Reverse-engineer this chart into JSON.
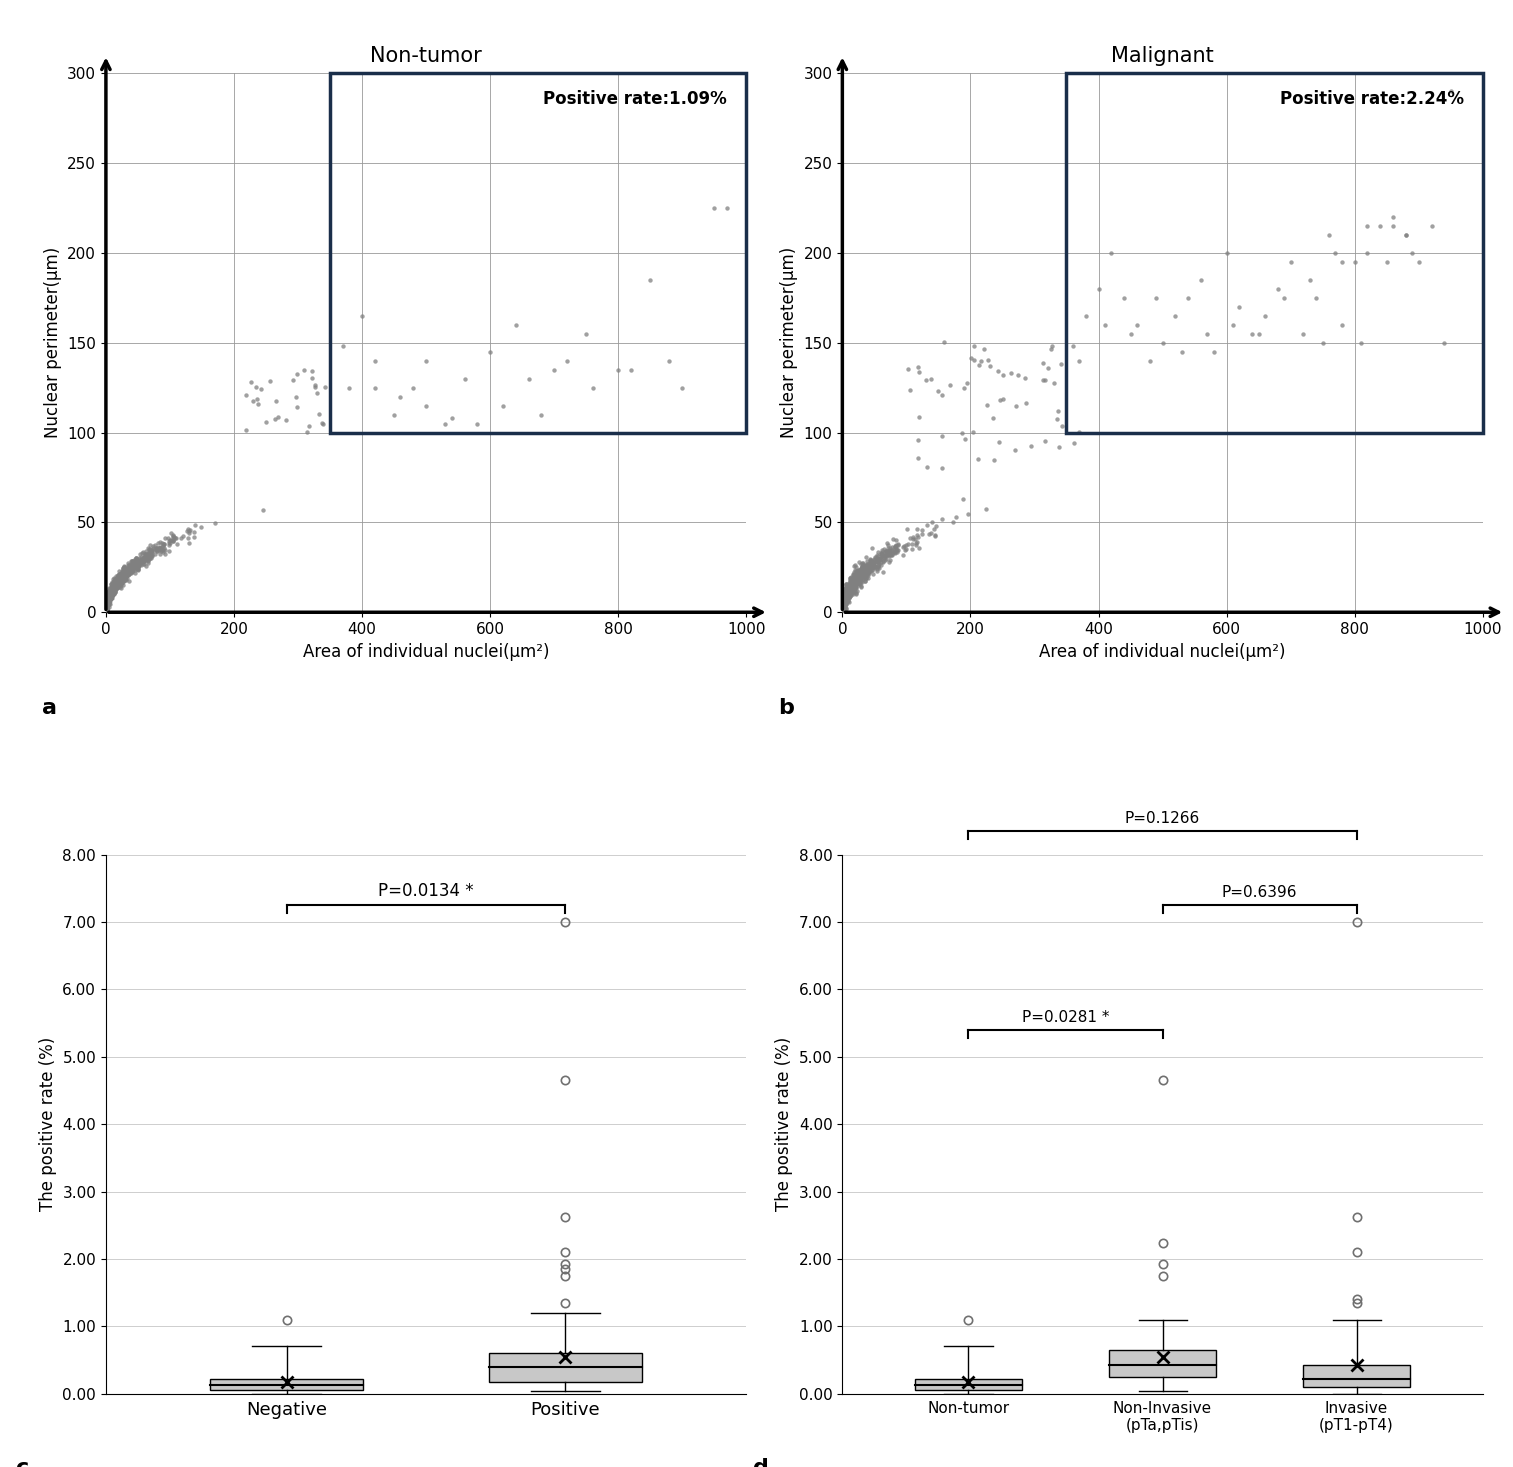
{
  "scatter_a": {
    "title": "Non-tumor",
    "positive_rate": "Positive rate:1.09%",
    "xlabel": "Area of individual nuclei(μm²)",
    "ylabel": "Nuclear perimeter(μm)",
    "xlim": [
      0,
      1000
    ],
    "ylim": [
      0,
      300
    ],
    "xticks": [
      0,
      200,
      400,
      600,
      800,
      1000
    ],
    "yticks": [
      0,
      50,
      100,
      150,
      200,
      250,
      300
    ],
    "threshold_x": 350,
    "threshold_y": 100,
    "label": "a",
    "dot_color": "#808080",
    "box_color": "#1a2e4a"
  },
  "scatter_b": {
    "title": "Malignant",
    "positive_rate": "Positive rate:2.24%",
    "xlabel": "Area of individual nuclei(μm²)",
    "ylabel": "Nuclear perimeter(μm)",
    "xlim": [
      0,
      1000
    ],
    "ylim": [
      0,
      300
    ],
    "xticks": [
      0,
      200,
      400,
      600,
      800,
      1000
    ],
    "yticks": [
      0,
      50,
      100,
      150,
      200,
      250,
      300
    ],
    "threshold_x": 350,
    "threshold_y": 100,
    "label": "b",
    "dot_color": "#808080",
    "box_color": "#1a2e4a"
  },
  "boxplot_c": {
    "label": "c",
    "ylabel": "The positive rate (%)",
    "ylim": [
      0,
      8.0
    ],
    "yticks": [
      0.0,
      1.0,
      2.0,
      3.0,
      4.0,
      5.0,
      6.0,
      7.0,
      8.0
    ],
    "categories": [
      "Negative",
      "Positive"
    ],
    "p_value": "P=0.0134 *",
    "box_color": "#c8c8c8",
    "neg_data": {
      "median": 0.13,
      "q1": 0.06,
      "q3": 0.22,
      "whisker_low": 0.0,
      "whisker_high": 0.7,
      "outliers": [
        1.09
      ],
      "mean": 0.18
    },
    "pos_data": {
      "median": 0.4,
      "q1": 0.18,
      "q3": 0.6,
      "whisker_low": 0.04,
      "whisker_high": 1.19,
      "outliers": [
        1.35,
        1.75,
        1.85,
        1.93,
        2.1,
        2.62,
        4.65,
        7.0
      ],
      "mean": 0.55
    }
  },
  "boxplot_d": {
    "label": "d",
    "ylabel": "The positive rate (%)",
    "ylim": [
      0,
      8.0
    ],
    "yticks": [
      0.0,
      1.0,
      2.0,
      3.0,
      4.0,
      5.0,
      6.0,
      7.0,
      8.0
    ],
    "categories": [
      "Non-tumor",
      "Non-Invasive\n(pTa,pTis)",
      "Invasive\n(pT1-pT4)"
    ],
    "p_val_nontumor_noninvasive": "P=0.0281 *",
    "p_val_nontumor_invasive": "P=0.1266",
    "p_val_noninvasive_invasive": "P=0.6396",
    "box_color": "#c8c8c8",
    "nontumor_data": {
      "median": 0.13,
      "q1": 0.06,
      "q3": 0.22,
      "whisker_low": 0.0,
      "whisker_high": 0.7,
      "outliers": [
        1.09
      ],
      "mean": 0.18
    },
    "noninvasive_data": {
      "median": 0.42,
      "q1": 0.25,
      "q3": 0.65,
      "whisker_low": 0.04,
      "whisker_high": 1.09,
      "outliers": [
        1.75,
        1.93,
        2.24,
        4.65
      ],
      "mean": 0.55
    },
    "invasive_data": {
      "median": 0.22,
      "q1": 0.1,
      "q3": 0.42,
      "whisker_low": 0.0,
      "whisker_high": 1.09,
      "outliers": [
        1.35,
        1.4,
        2.1,
        2.62,
        7.0
      ],
      "mean": 0.42
    }
  }
}
